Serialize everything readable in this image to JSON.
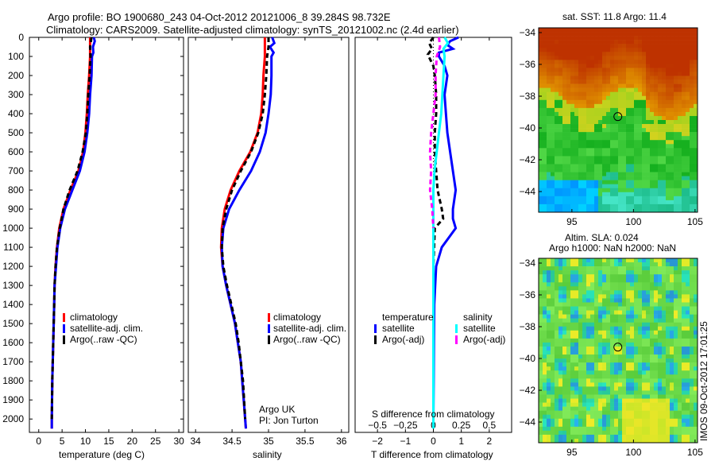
{
  "title_line1": "Argo profile: BO 1900680_243 04-Oct-2012 20121006_8 39.284S 98.732E",
  "title_line2": "Climatology: CARS2009. Satellite-adjusted climatology: synTS_20121002.nc (2.4d earlier)",
  "side_label": "IMOS 09-Oct-2012 17:01:25",
  "credit_line1": "Argo UK",
  "credit_line2": "PI: Jon Turton",
  "map_sst_title": "sat. SST: 11.8 Argo: 11.4",
  "map_sla_title1": "Altim. SLA: 0.024",
  "map_sla_title2": "Argo h1000: NaN h2000: NaN",
  "colors": {
    "climatology": "#ff0000",
    "satellite": "#0000ff",
    "argo": "#000000",
    "sat_sal": "#00ffff",
    "argo_sal": "#ff00ff"
  },
  "chart_data": [
    {
      "type": "line",
      "xlabel": "temperature (deg C)",
      "ylabel": "",
      "xlim": [
        -2,
        31
      ],
      "ylim": [
        2070,
        0
      ],
      "x_ticks": [
        0,
        5,
        10,
        15,
        20,
        25,
        30
      ],
      "y_ticks": [
        0,
        100,
        200,
        300,
        400,
        500,
        600,
        700,
        800,
        900,
        1000,
        1100,
        1200,
        1300,
        1400,
        1500,
        1600,
        1700,
        1800,
        1900,
        2000
      ],
      "legend": [
        "climatology",
        "satellite-adj. clim.",
        "Argo(..raw -QC)"
      ],
      "legend_position": "lower-right",
      "series": [
        {
          "name": "climatology",
          "depth": [
            0,
            50,
            100,
            200,
            300,
            400,
            500,
            600,
            700,
            800,
            900,
            1000,
            1100,
            1200,
            1300,
            1400,
            1500,
            1600,
            1800,
            2000,
            2050
          ],
          "values": [
            11.0,
            11.0,
            11.0,
            10.8,
            10.5,
            10.3,
            10.0,
            9.5,
            8.5,
            6.8,
            5.3,
            4.4,
            3.9,
            3.6,
            3.4,
            3.3,
            3.2,
            3.1,
            2.9,
            2.8,
            2.8
          ]
        },
        {
          "name": "satellite-adj. clim.",
          "depth": [
            0,
            20,
            50,
            80,
            100,
            200,
            300,
            400,
            500,
            600,
            700,
            800,
            900,
            1000,
            1100,
            1200,
            1300,
            1400,
            1500,
            1600,
            1800,
            2000,
            2050
          ],
          "values": [
            11.8,
            12.0,
            11.6,
            11.7,
            11.4,
            11.3,
            11.0,
            10.8,
            10.4,
            9.8,
            8.8,
            7.2,
            5.6,
            4.6,
            4.0,
            3.7,
            3.4,
            3.3,
            3.2,
            3.1,
            2.9,
            2.8,
            2.8
          ]
        },
        {
          "name": "Argo(..raw -QC)",
          "depth": [
            0,
            50,
            100,
            200,
            300,
            400,
            500,
            600,
            700,
            800,
            900,
            1000,
            1100,
            1200,
            1300,
            1400,
            1500,
            1600,
            1800,
            2000
          ],
          "values": [
            11.3,
            11.0,
            11.1,
            10.9,
            10.6,
            10.4,
            10.1,
            9.4,
            8.3,
            6.6,
            5.3,
            4.5,
            3.9,
            3.6,
            3.4,
            3.3,
            3.2,
            3.1,
            2.9,
            2.8
          ]
        }
      ]
    },
    {
      "type": "line",
      "xlabel": "salinity",
      "ylabel": "",
      "xlim": [
        33.9,
        36.1
      ],
      "ylim": [
        2070,
        0
      ],
      "x_ticks": [
        34,
        34.5,
        35,
        35.5,
        36
      ],
      "legend": [
        "climatology",
        "satellite-adj. clim.",
        "Argo(..raw -QC)"
      ],
      "legend_position": "lower-right",
      "series": [
        {
          "name": "climatology",
          "depth": [
            0,
            100,
            200,
            300,
            400,
            500,
            600,
            700,
            800,
            900,
            1000,
            1100,
            1200,
            1300,
            1400,
            1500,
            1600,
            1700,
            1800,
            1900,
            2000,
            2050
          ],
          "values": [
            34.95,
            34.95,
            34.93,
            34.92,
            34.9,
            34.85,
            34.75,
            34.6,
            34.48,
            34.4,
            34.36,
            34.35,
            34.37,
            34.42,
            34.48,
            34.54,
            34.58,
            34.62,
            34.64,
            34.66,
            34.68,
            34.69
          ]
        },
        {
          "name": "satellite-adj. clim.",
          "depth": [
            0,
            30,
            50,
            80,
            100,
            200,
            300,
            400,
            500,
            600,
            700,
            800,
            900,
            1000,
            1100,
            1200,
            1300,
            1400,
            1500,
            1600,
            1700,
            1800,
            1900,
            2000,
            2050
          ],
          "values": [
            35.05,
            35.08,
            35.02,
            35.07,
            35.04,
            35.04,
            35.03,
            35.0,
            34.96,
            34.88,
            34.76,
            34.6,
            34.46,
            34.38,
            34.36,
            34.37,
            34.42,
            34.48,
            34.54,
            34.58,
            34.62,
            34.64,
            34.66,
            34.68,
            34.69
          ]
        },
        {
          "name": "Argo(..raw -QC)",
          "depth": [
            0,
            50,
            100,
            200,
            300,
            400,
            500,
            600,
            700,
            800,
            900,
            1000,
            1100,
            1200,
            1300,
            1400,
            1500,
            1600,
            1800,
            2000
          ],
          "values": [
            35.0,
            35.0,
            34.98,
            34.97,
            34.95,
            34.92,
            34.86,
            34.76,
            34.62,
            34.5,
            34.42,
            34.37,
            34.36,
            34.38,
            34.43,
            34.49,
            34.55,
            34.59,
            34.65,
            34.68
          ]
        }
      ]
    },
    {
      "type": "line",
      "xlabel": "T difference from climatology",
      "xlabel_top": "S difference from climatology",
      "ylabel": "",
      "xlim": [
        -2.8,
        2.8
      ],
      "ylim": [
        2070,
        0
      ],
      "x_ticks": [
        -2,
        -1,
        0,
        1,
        2
      ],
      "x_tick_labels": [
        "−2",
        "−1",
        "0",
        "1",
        "2"
      ],
      "x_ticks_s": [
        -0.5,
        -0.25,
        0,
        0.25,
        0.5
      ],
      "x_tick_labels_s": [
        "−0.5",
        "−0.25",
        "0",
        "0.25",
        "0.5"
      ],
      "legend_header_left": "temperature",
      "legend_header_right": "salinity",
      "legend": [
        "satellite",
        "Argo(-adj)",
        "satellite",
        "Argo(-adj)"
      ],
      "legend_position": "lower",
      "series": [
        {
          "name": "satellite",
          "quantity": "temperature",
          "depth": [
            0,
            20,
            40,
            60,
            80,
            100,
            150,
            200,
            300,
            400,
            500,
            600,
            700,
            800,
            900,
            950,
            1000,
            1100,
            1200,
            1400,
            1600,
            1800,
            2000
          ],
          "values": [
            0.9,
            0.6,
            0.5,
            0.7,
            0.2,
            0.2,
            0.4,
            0.5,
            0.4,
            0.45,
            0.5,
            0.6,
            0.7,
            0.8,
            0.7,
            0.7,
            0.8,
            0.3,
            0.1,
            0.03,
            0.02,
            0.01,
            0.0
          ]
        },
        {
          "name": "Argo(-adj)",
          "quantity": "temperature",
          "depth": [
            0,
            30,
            60,
            90,
            120,
            150,
            200,
            300,
            400,
            500,
            600,
            700,
            800,
            900,
            950,
            1000,
            1200,
            1500,
            2000
          ],
          "values": [
            0.0,
            -0.15,
            -0.05,
            -0.2,
            -0.1,
            0.0,
            0.05,
            0.1,
            0.1,
            0.05,
            0.05,
            0.1,
            0.15,
            0.3,
            0.35,
            0.05,
            0.0,
            0.0,
            0.0
          ]
        },
        {
          "name": "satellite",
          "quantity": "salinity",
          "depth": [
            0,
            30,
            60,
            100,
            200,
            300,
            400,
            500,
            600,
            700,
            800,
            900,
            1000,
            1200,
            1400,
            1600,
            1800,
            2000,
            2050
          ],
          "values": [
            0.1,
            0.13,
            0.09,
            0.1,
            0.09,
            0.08,
            0.07,
            0.05,
            0.03,
            0.01,
            0.0,
            0.0,
            0.0,
            0.0,
            0.0,
            0.0,
            0.0,
            0.0,
            0.0
          ]
        },
        {
          "name": "Argo(-adj)",
          "quantity": "salinity",
          "depth": [
            0,
            50,
            100,
            200,
            300,
            400,
            500,
            600,
            700,
            800,
            900,
            1000
          ],
          "values": [
            0.05,
            0.06,
            0.03,
            0.02,
            0.02,
            0.0,
            -0.02,
            -0.03,
            -0.02,
            -0.03,
            -0.01,
            0.0
          ]
        }
      ]
    },
    {
      "type": "heatmap",
      "title": "sat. SST: 11.8 Argo: 11.4",
      "xlim": [
        92.3,
        105.2
      ],
      "ylim": [
        -45.3,
        -33.7
      ],
      "x_ticks": [
        95,
        100,
        105
      ],
      "y_ticks": [
        -34,
        -36,
        -38,
        -40,
        -42,
        -44
      ],
      "marker": {
        "lon": 98.732,
        "lat": -39.284
      }
    },
    {
      "type": "heatmap",
      "title": "Altim. SLA: 0.024",
      "xlim": [
        92.3,
        105.2
      ],
      "ylim": [
        -45.3,
        -33.7
      ],
      "x_ticks": [
        95,
        100,
        105
      ],
      "y_ticks": [
        -34,
        -36,
        -38,
        -40,
        -42,
        -44
      ],
      "marker": {
        "lon": 98.732,
        "lat": -39.284
      }
    }
  ]
}
